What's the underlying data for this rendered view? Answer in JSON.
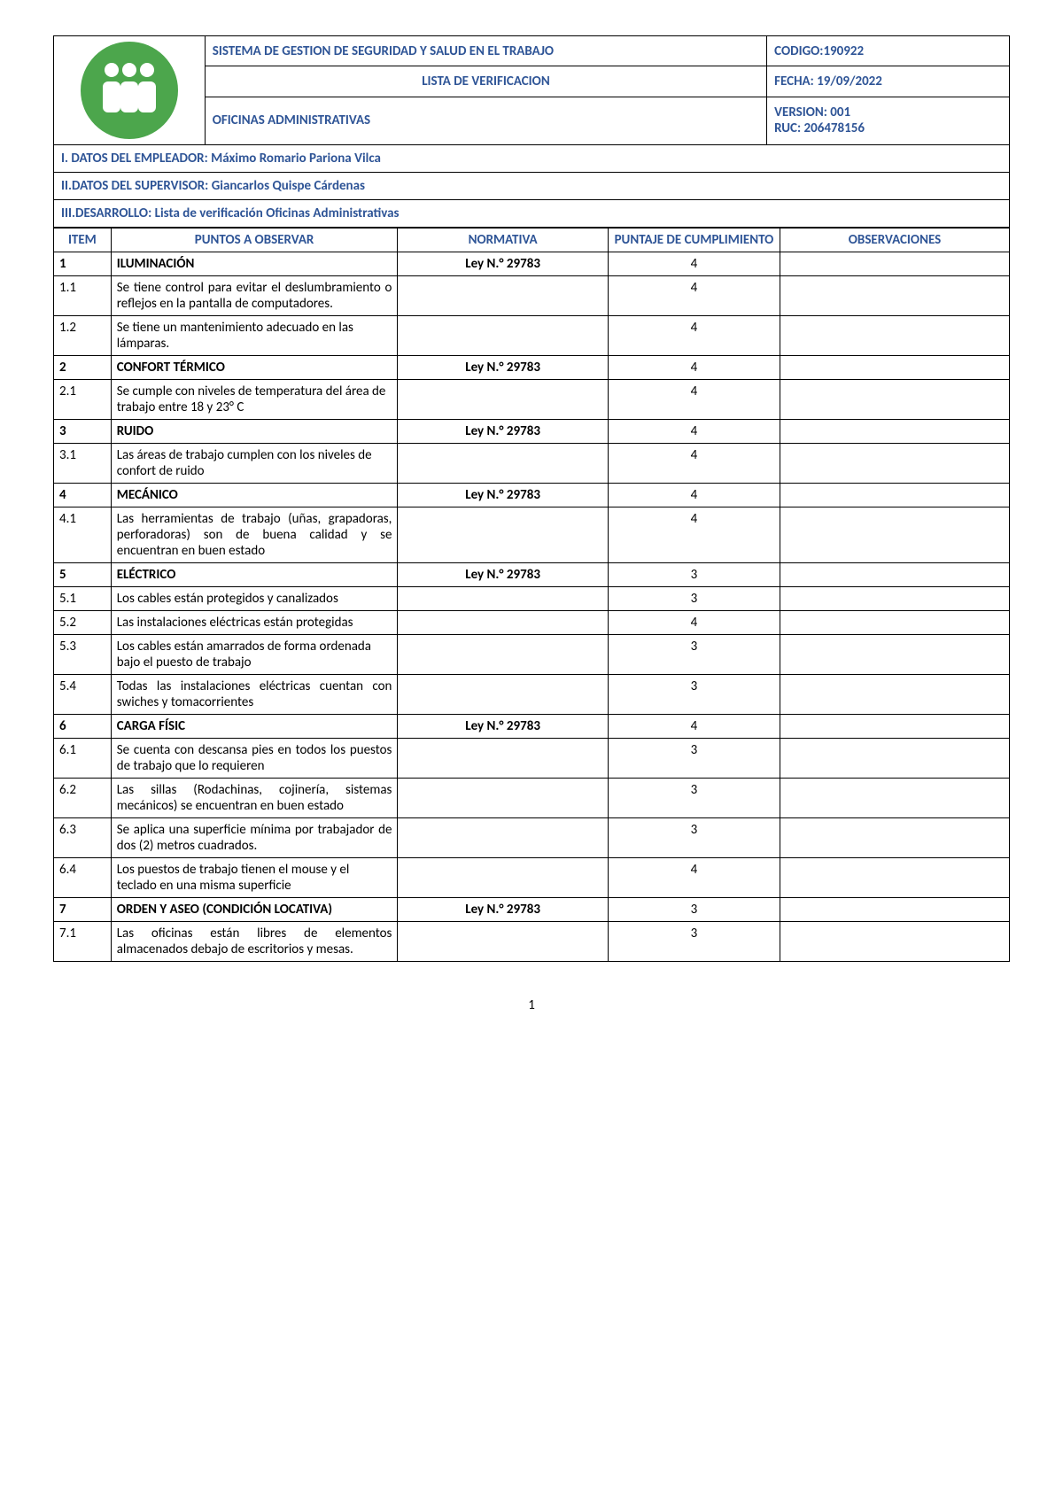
{
  "header": {
    "system_title": "SISTEMA DE GESTION DE SEGURIDAD Y SALUD EN EL TRABAJO",
    "codigo_label": "CODIGO:190922",
    "list_title": "LISTA DE VERIFICACION",
    "fecha_label": "FECHA: 19/09/2022",
    "oficinas_label": "OFICINAS ADMINISTRATIVAS",
    "version_label": "VERSION: 001",
    "ruc_label": "RUC: 206478156"
  },
  "sections": {
    "s1_label": "I. DATOS DEL EMPLEADOR: Máximo Romario Pariona Vilca",
    "s2_label": "II.DATOS DEL SUPERVISOR: Giancarlos Quispe Cárdenas",
    "s3_label": "III.DESARROLLO: Lista de verificación Oficinas Administrativas"
  },
  "columns": {
    "item": "ITEM",
    "puntos": "PUNTOS A OBSERVAR",
    "normativa": "NORMATIVA",
    "puntaje": "PUNTAJE DE CUMPLIMIENTO",
    "observaciones": "OBSERVACIONES"
  },
  "rows": [
    {
      "item": "1",
      "puntos": "ILUMINACIÓN",
      "normativa": "Ley N.° 29783",
      "puntaje": "4",
      "obs": "",
      "bold": true
    },
    {
      "item": "1.1",
      "puntos": "Se tiene control para evitar el deslumbramiento o reflejos en la pantalla de computadores.",
      "normativa": "",
      "puntaje": "4",
      "obs": "",
      "justify": true
    },
    {
      "item": "1.2",
      "puntos": "Se tiene un mantenimiento adecuado en las lámparas.",
      "normativa": "",
      "puntaje": "4",
      "obs": ""
    },
    {
      "item": "2",
      "puntos": "CONFORT TÉRMICO",
      "normativa": "Ley N.° 29783",
      "puntaje": "4",
      "obs": "",
      "bold": true
    },
    {
      "item": "2.1",
      "puntos": "Se cumple con niveles de temperatura del área de trabajo entre 18 y 23° C",
      "normativa": "",
      "puntaje": "4",
      "obs": ""
    },
    {
      "item": "3",
      "puntos": "RUIDO",
      "normativa": "Ley N.° 29783",
      "puntaje": "4",
      "obs": "",
      "bold": true
    },
    {
      "item": "3.1",
      "puntos": "Las áreas de trabajo cumplen con los niveles de confort de ruido",
      "normativa": "",
      "puntaje": "4",
      "obs": ""
    },
    {
      "item": "4",
      "puntos": "MECÁNICO",
      "normativa": "Ley N.° 29783",
      "puntaje": "4",
      "obs": "",
      "bold": true
    },
    {
      "item": "4.1",
      "puntos": "Las herramientas de trabajo (uñas, grapadoras, perforadoras) son de buena calidad y se encuentran en buen estado",
      "normativa": "",
      "puntaje": "4",
      "obs": "",
      "justify": true
    },
    {
      "item": "5",
      "puntos": "ELÉCTRICO",
      "normativa": "Ley N.° 29783",
      "puntaje": "3",
      "obs": "",
      "bold": true
    },
    {
      "item": "5.1",
      "puntos": "Los cables están protegidos y canalizados",
      "normativa": "",
      "puntaje": "3",
      "obs": "",
      "justify": true
    },
    {
      "item": "5.2",
      "puntos": "Las instalaciones eléctricas están protegidas",
      "normativa": "",
      "puntaje": "4",
      "obs": "",
      "justify": true
    },
    {
      "item": "5.3",
      "puntos": "Los cables están amarrados de forma ordenada bajo el puesto de trabajo",
      "normativa": "",
      "puntaje": "3",
      "obs": ""
    },
    {
      "item": "5.4",
      "puntos": "Todas las instalaciones eléctricas cuentan con swiches y tomacorrientes",
      "normativa": "",
      "puntaje": "3",
      "obs": "",
      "justify": true
    },
    {
      "item": "6",
      "puntos": "CARGA FÍSIC",
      "normativa": "Ley N.° 29783",
      "puntaje": "4",
      "obs": "",
      "bold": true
    },
    {
      "item": "6.1",
      "puntos": "Se cuenta con descansa pies en todos los puestos de trabajo que lo requieren",
      "normativa": "",
      "puntaje": "3",
      "obs": "",
      "justify": true
    },
    {
      "item": "6.2",
      "puntos": "Las sillas (Rodachinas, cojinería, sistemas mecánicos) se encuentran en buen estado",
      "normativa": "",
      "puntaje": "3",
      "obs": "",
      "justify": true
    },
    {
      "item": "6.3",
      "puntos": "Se aplica una superficie mínima por trabajador de dos (2) metros cuadrados.",
      "normativa": "",
      "puntaje": "3",
      "obs": "",
      "justify": true
    },
    {
      "item": "6.4",
      "puntos": "Los puestos de trabajo tienen el mouse y el teclado en una misma superficie",
      "normativa": "",
      "puntaje": "4",
      "obs": ""
    },
    {
      "item": "7",
      "puntos": "ORDEN Y ASEO (CONDICIÓN LOCATIVA)",
      "normativa": "Ley N.° 29783",
      "puntaje": "3",
      "obs": "",
      "bold": true,
      "justify": true
    },
    {
      "item": "7.1",
      "puntos": "Las oficinas están libres de elementos almacenados debajo de escritorios y mesas.",
      "normativa": "",
      "puntaje": "3",
      "obs": "",
      "justify": true
    }
  ],
  "footer": {
    "page_number": "1"
  },
  "colors": {
    "title_color": "#2e5496",
    "logo_bg": "#4ca64c",
    "border": "#000000"
  }
}
